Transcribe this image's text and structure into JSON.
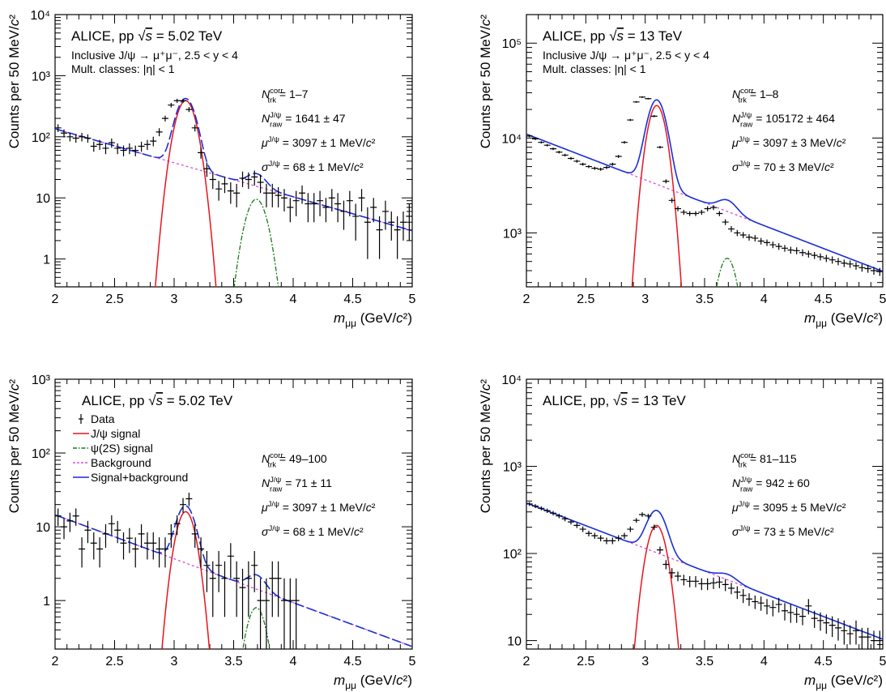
{
  "colors": {
    "data": "#000000",
    "jpsi_signal": "#e8141e",
    "psi2s_signal": "#1a7a1a",
    "background": "#d64fd6",
    "total": "#1a2fd6"
  },
  "chart_data": [
    {
      "id": "tl",
      "type": "scatter",
      "yscale": "log",
      "xlim": [
        2,
        5
      ],
      "ylim": [
        0.35,
        10000
      ],
      "xticks": [
        "2",
        "2.5",
        "3",
        "3.5",
        "4",
        "4.5",
        "5"
      ],
      "yticks": [
        {
          "v": 1,
          "label": "1"
        },
        {
          "v": 10,
          "label": "10"
        },
        {
          "v": 100,
          "label": "10²"
        },
        {
          "v": 1000,
          "label": "10³"
        },
        {
          "v": 10000,
          "label": "10⁴"
        }
      ],
      "xlabel": "m_μμ (GeV/c²)",
      "ylabel": "Counts per 50 MeV/c²",
      "header": "ALICE, pp √s = 5.02 TeV",
      "subheader": [
        "Inclusive J/ψ → μ⁺μ⁻, 2.5 < y < 4",
        "Mult. classes: |η| < 1"
      ],
      "results": [
        "N_trk^corr = 1–7",
        "N_raw^J/ψ = 1641 ± 47",
        "μ^J/ψ = 3097 ± 1 MeV/c²",
        "σ^J/ψ = 68 ± 1 MeV/c²"
      ],
      "total_dashed": true,
      "fit": {
        "jpsi_amp": 390,
        "jpsi_mean": 3.097,
        "jpsi_sigma": 0.068,
        "psi_amp": 9.5,
        "psi_mean": 3.69,
        "psi_sigma": 0.072,
        "bkg_a": 135,
        "bkg_b": 1.28
      },
      "x": [
        2.025,
        2.075,
        2.125,
        2.175,
        2.225,
        2.275,
        2.325,
        2.375,
        2.425,
        2.475,
        2.525,
        2.575,
        2.625,
        2.675,
        2.725,
        2.775,
        2.825,
        2.875,
        2.925,
        2.975,
        3.025,
        3.075,
        3.125,
        3.175,
        3.225,
        3.275,
        3.325,
        3.375,
        3.425,
        3.475,
        3.525,
        3.575,
        3.625,
        3.675,
        3.725,
        3.775,
        3.825,
        3.875,
        3.925,
        3.975,
        4.025,
        4.075,
        4.125,
        4.175,
        4.225,
        4.275,
        4.325,
        4.375,
        4.425,
        4.475,
        4.525,
        4.575,
        4.625,
        4.675,
        4.725,
        4.775,
        4.825,
        4.875,
        4.925,
        4.975
      ],
      "y": [
        140,
        115,
        100,
        95,
        100,
        95,
        70,
        75,
        65,
        80,
        65,
        60,
        65,
        60,
        70,
        75,
        85,
        120,
        200,
        330,
        390,
        390,
        280,
        140,
        55,
        30,
        20,
        14,
        17,
        13,
        12,
        21,
        20,
        22,
        18,
        12,
        12,
        11,
        10,
        7,
        9,
        12,
        8,
        8,
        9,
        7,
        10,
        8,
        6,
        9,
        5,
        10,
        4,
        7,
        3,
        6,
        4,
        3,
        4,
        5
      ],
      "yerr": [
        20,
        17,
        16,
        15,
        16,
        15,
        13,
        14,
        13,
        14,
        13,
        12,
        13,
        12,
        13,
        14,
        15,
        18,
        22,
        28,
        30,
        30,
        26,
        18,
        11,
        8,
        6,
        5,
        5,
        5,
        5,
        6,
        6,
        6,
        6,
        5,
        5,
        4,
        4,
        3,
        4,
        4,
        4,
        4,
        4,
        3,
        4,
        4,
        3,
        4,
        3,
        4,
        3,
        3,
        2,
        3,
        2,
        2,
        2,
        3
      ]
    },
    {
      "id": "tr",
      "type": "scatter",
      "yscale": "log",
      "xlim": [
        2,
        5
      ],
      "ylim": [
        270,
        200000
      ],
      "xticks": [
        "2",
        "2.5",
        "3",
        "3.5",
        "4",
        "4.5",
        "5"
      ],
      "yticks": [
        {
          "v": 1000,
          "label": "10³"
        },
        {
          "v": 10000,
          "label": "10⁴"
        },
        {
          "v": 100000,
          "label": "10⁵"
        }
      ],
      "xlabel": "m_μμ (GeV/c²)",
      "ylabel": "Counts per 50 MeV/c²",
      "header": "ALICE, pp √s = 13 TeV",
      "subheader": [
        "Inclusive J/ψ → μ⁺μ⁻, 2.5 < y < 4",
        "Mult. classes: |η| < 1"
      ],
      "results": [
        "N_trk^corr = 1–8",
        "N_raw^J/ψ = 105172 ± 464",
        "μ^J/ψ = 3097 ± 3 MeV/c²",
        "σ^J/ψ = 70 ± 3 MeV/c²"
      ],
      "total_dashed": false,
      "fit": {
        "jpsi_amp": 22000,
        "jpsi_mean": 3.097,
        "jpsi_sigma": 0.07,
        "psi_amp": 540,
        "psi_mean": 3.69,
        "psi_sigma": 0.075,
        "bkg_a": 11000,
        "bkg_b": 1.11
      },
      "x": [
        2.025,
        2.075,
        2.125,
        2.175,
        2.225,
        2.275,
        2.325,
        2.375,
        2.425,
        2.475,
        2.525,
        2.575,
        2.625,
        2.675,
        2.725,
        2.775,
        2.825,
        2.875,
        2.925,
        2.975,
        3.025,
        3.075,
        3.125,
        3.175,
        3.225,
        3.275,
        3.325,
        3.375,
        3.425,
        3.475,
        3.525,
        3.575,
        3.625,
        3.675,
        3.725,
        3.775,
        3.825,
        3.875,
        3.925,
        3.975,
        4.025,
        4.075,
        4.125,
        4.175,
        4.225,
        4.275,
        4.325,
        4.375,
        4.425,
        4.475,
        4.525,
        4.575,
        4.625,
        4.675,
        4.725,
        4.775,
        4.825,
        4.875,
        4.925,
        4.975
      ],
      "y": [
        10500,
        9800,
        9000,
        8400,
        7700,
        7100,
        6600,
        6100,
        5700,
        5300,
        5000,
        4800,
        4700,
        4900,
        5300,
        6400,
        9000,
        15500,
        24000,
        27000,
        26000,
        17000,
        8000,
        3500,
        2200,
        1800,
        1650,
        1600,
        1600,
        1650,
        1800,
        1850,
        1600,
        1300,
        1100,
        1000,
        950,
        900,
        880,
        820,
        790,
        750,
        720,
        690,
        660,
        650,
        620,
        600,
        580,
        560,
        540,
        520,
        500,
        480,
        470,
        450,
        430,
        420,
        400,
        390
      ],
      "yerr": [
        300,
        280,
        260,
        250,
        240,
        230,
        220,
        210,
        200,
        190,
        185,
        180,
        180,
        185,
        200,
        230,
        300,
        400,
        500,
        550,
        530,
        420,
        260,
        170,
        130,
        110,
        100,
        95,
        95,
        100,
        110,
        110,
        100,
        90,
        80,
        75,
        70,
        70,
        68,
        65,
        62,
        60,
        58,
        56,
        55,
        54,
        52,
        50,
        49,
        48,
        47,
        46,
        44,
        43,
        42,
        41,
        40,
        40,
        38,
        38
      ]
    },
    {
      "id": "bl",
      "type": "scatter",
      "yscale": "log",
      "xlim": [
        2,
        5
      ],
      "ylim": [
        0.22,
        1000
      ],
      "xticks": [
        "2",
        "2.5",
        "3",
        "3.5",
        "4",
        "4.5",
        "5"
      ],
      "yticks": [
        {
          "v": 1,
          "label": "1"
        },
        {
          "v": 10,
          "label": "10"
        },
        {
          "v": 100,
          "label": "10²"
        },
        {
          "v": 1000,
          "label": "10³"
        }
      ],
      "xlabel": "m_μμ (GeV/c²)",
      "ylabel": "Counts per 50 MeV/c²",
      "header": "ALICE, pp √s = 5.02 TeV",
      "legend": [
        "Data",
        "J/ψ signal",
        "ψ(2S) signal",
        "Background",
        "Signal+background"
      ],
      "results": [
        "N_trk^corr = 49–100",
        "N_raw^J/ψ = 71 ± 11",
        "μ^J/ψ = 3097 ± 1 MeV/c²",
        "σ^J/ψ = 68 ± 1 MeV/c²"
      ],
      "total_dashed": true,
      "fit": {
        "jpsi_amp": 16,
        "jpsi_mean": 3.097,
        "jpsi_sigma": 0.068,
        "psi_amp": 0.8,
        "psi_mean": 3.69,
        "psi_sigma": 0.07,
        "bkg_a": 14.5,
        "bkg_b": 1.37
      },
      "x": [
        2.025,
        2.075,
        2.125,
        2.175,
        2.225,
        2.275,
        2.325,
        2.375,
        2.425,
        2.475,
        2.525,
        2.575,
        2.625,
        2.675,
        2.725,
        2.775,
        2.825,
        2.875,
        2.925,
        2.975,
        3.025,
        3.075,
        3.125,
        3.175,
        3.225,
        3.275,
        3.325,
        3.375,
        3.425,
        3.475,
        3.525,
        3.575,
        3.625,
        3.675,
        3.725,
        3.775,
        3.825,
        3.875,
        3.925,
        3.975,
        4.025
      ],
      "y": [
        14,
        10,
        12,
        14,
        5,
        9,
        6,
        5,
        8,
        11,
        9,
        6,
        7,
        5,
        8,
        6,
        6,
        5,
        5,
        8,
        11,
        20,
        24,
        8,
        5,
        3,
        2,
        3,
        2,
        4,
        2,
        1.5,
        2,
        3,
        1,
        1,
        2,
        2,
        1,
        1,
        1
      ],
      "yerr": [
        3.7,
        3.2,
        3.5,
        3.7,
        2.2,
        3,
        2.4,
        2.2,
        2.8,
        3.3,
        3,
        2.4,
        2.6,
        2.2,
        2.8,
        2.4,
        2.4,
        2.2,
        2.2,
        2.8,
        3.3,
        4.5,
        4.9,
        2.8,
        2.2,
        1.7,
        1.4,
        1.7,
        1.4,
        2,
        1.4,
        1.2,
        1.4,
        1.7,
        1,
        1,
        1.4,
        1.4,
        1,
        1,
        1
      ]
    },
    {
      "id": "br",
      "type": "scatter",
      "yscale": "log",
      "xlim": [
        2,
        5
      ],
      "ylim": [
        8,
        10000
      ],
      "xticks": [
        "2",
        "2.5",
        "3",
        "3.5",
        "4",
        "4.5",
        "5"
      ],
      "yticks": [
        {
          "v": 10,
          "label": "10"
        },
        {
          "v": 100,
          "label": "10²"
        },
        {
          "v": 1000,
          "label": "10³"
        },
        {
          "v": 10000,
          "label": "10⁴"
        }
      ],
      "xlabel": "m_μμ (GeV/c²)",
      "ylabel": "Counts per 50 MeV/c²",
      "header": "ALICE, pp, √s = 13 TeV",
      "results": [
        "N_trk^corr = 81–115",
        "N_raw^J/ψ = 942 ± 60",
        "μ^J/ψ = 3095 ± 5 MeV/c²",
        "σ^J/ψ = 73 ± 5 MeV/c²"
      ],
      "total_dashed": false,
      "fit": {
        "jpsi_amp": 210,
        "jpsi_mean": 3.095,
        "jpsi_sigma": 0.073,
        "psi_amp": 8,
        "psi_mean": 3.69,
        "psi_sigma": 0.075,
        "bkg_a": 380,
        "bkg_b": 1.2
      },
      "x": [
        2.025,
        2.075,
        2.125,
        2.175,
        2.225,
        2.275,
        2.325,
        2.375,
        2.425,
        2.475,
        2.525,
        2.575,
        2.625,
        2.675,
        2.725,
        2.775,
        2.825,
        2.875,
        2.925,
        2.975,
        3.025,
        3.075,
        3.125,
        3.175,
        3.225,
        3.275,
        3.325,
        3.375,
        3.425,
        3.475,
        3.525,
        3.575,
        3.625,
        3.675,
        3.725,
        3.775,
        3.825,
        3.875,
        3.925,
        3.975,
        4.025,
        4.075,
        4.125,
        4.175,
        4.225,
        4.275,
        4.325,
        4.375,
        4.425,
        4.475,
        4.525,
        4.575,
        4.625,
        4.675,
        4.725,
        4.775,
        4.825,
        4.875,
        4.925,
        4.975
      ],
      "y": [
        370,
        350,
        330,
        310,
        290,
        270,
        250,
        230,
        210,
        190,
        170,
        160,
        150,
        140,
        140,
        150,
        160,
        190,
        240,
        280,
        270,
        200,
        110,
        75,
        60,
        55,
        50,
        48,
        48,
        45,
        45,
        46,
        47,
        44,
        40,
        36,
        33,
        30,
        28,
        27,
        25,
        24,
        26,
        22,
        21,
        20,
        19,
        25,
        18,
        17,
        16,
        15,
        14,
        13,
        12,
        13,
        11,
        11,
        10,
        10
      ],
      "yerr": [
        19,
        19,
        18,
        18,
        17,
        16,
        16,
        15,
        14,
        14,
        13,
        13,
        12,
        12,
        12,
        12,
        13,
        14,
        15,
        17,
        16,
        14,
        10,
        9,
        8,
        7,
        7,
        7,
        7,
        7,
        7,
        7,
        7,
        7,
        6,
        6,
        6,
        5,
        5,
        5,
        5,
        5,
        5,
        5,
        5,
        4,
        4,
        5,
        4,
        4,
        4,
        4,
        4,
        4,
        3,
        4,
        3,
        3,
        3,
        3
      ]
    }
  ]
}
